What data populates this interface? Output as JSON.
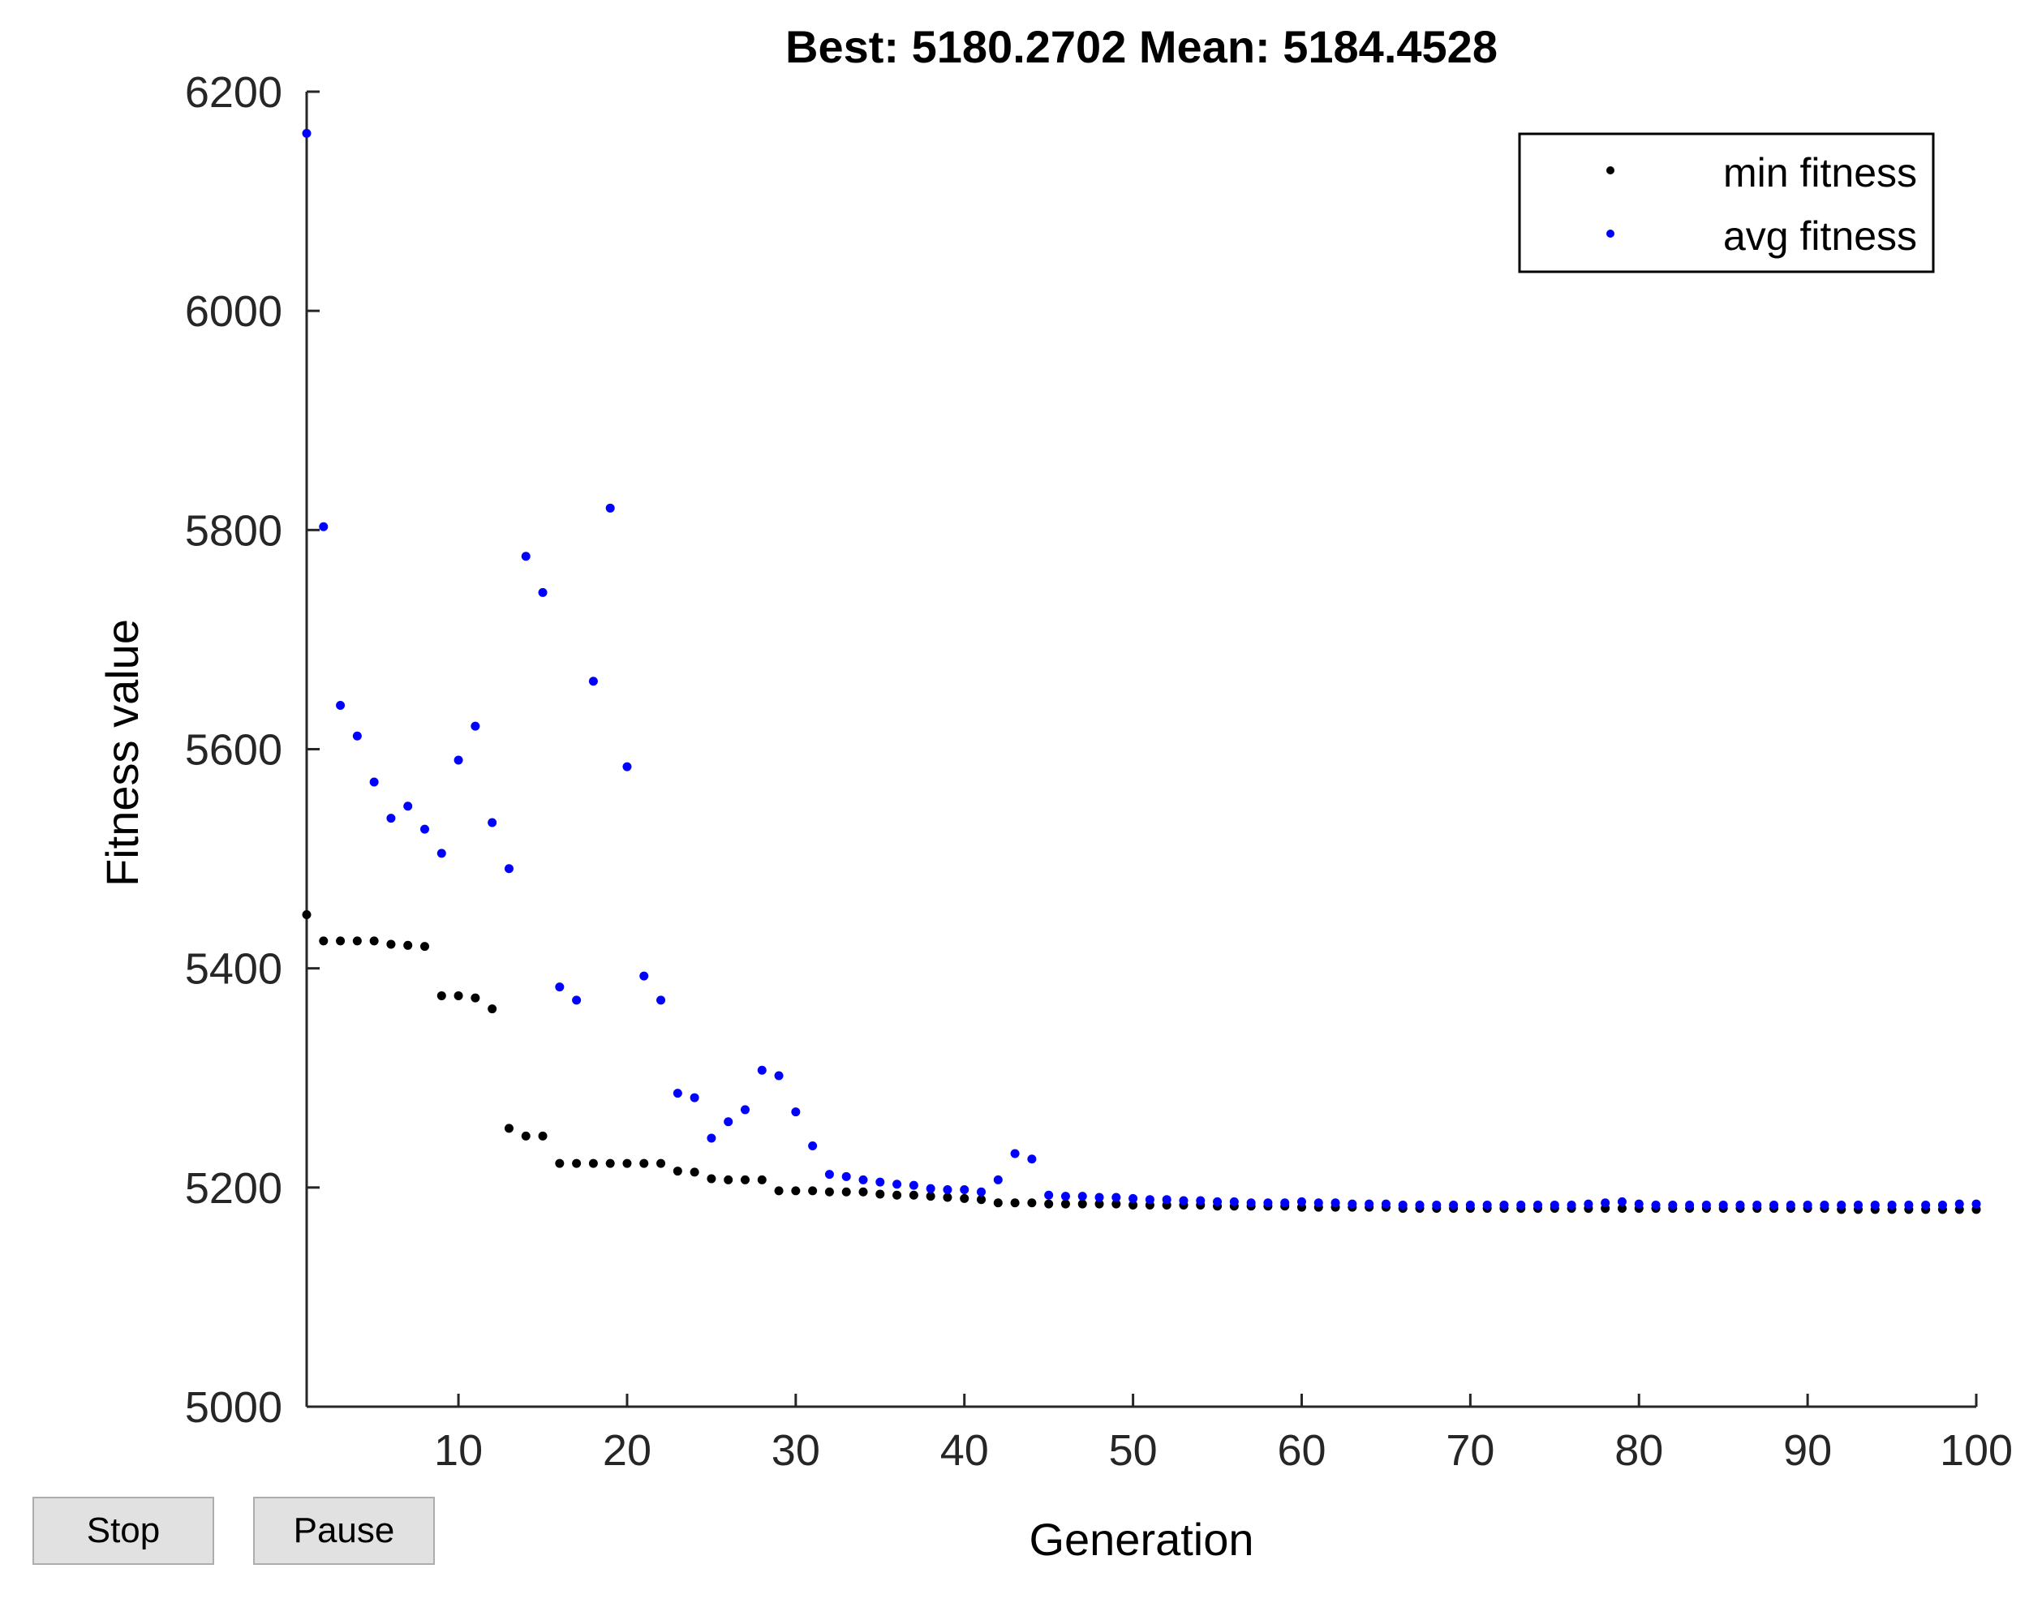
{
  "buttons": {
    "stop_label": "Stop",
    "pause_label": "Pause"
  },
  "chart_data": {
    "type": "scatter",
    "title": "Best: 5180.2702 Mean: 5184.4528",
    "xlabel": "Generation",
    "ylabel": "Fitness value",
    "xlim": [
      1,
      100
    ],
    "ylim": [
      5000,
      6200
    ],
    "xticks": [
      10,
      20,
      30,
      40,
      50,
      60,
      70,
      80,
      90,
      100
    ],
    "yticks": [
      5000,
      5200,
      5400,
      5600,
      5800,
      6000,
      6200
    ],
    "grid": false,
    "legend_position": "top-right",
    "series": [
      {
        "name": "min fitness",
        "color": "#000000",
        "x": [
          1,
          2,
          3,
          4,
          5,
          6,
          7,
          8,
          9,
          10,
          11,
          12,
          13,
          14,
          15,
          16,
          17,
          18,
          19,
          20,
          21,
          22,
          23,
          24,
          25,
          26,
          27,
          28,
          29,
          30,
          31,
          32,
          33,
          34,
          35,
          36,
          37,
          38,
          39,
          40,
          41,
          42,
          43,
          44,
          45,
          46,
          47,
          48,
          49,
          50,
          51,
          52,
          53,
          54,
          55,
          56,
          57,
          58,
          59,
          60,
          61,
          62,
          63,
          64,
          65,
          66,
          67,
          68,
          69,
          70,
          71,
          72,
          73,
          74,
          75,
          76,
          77,
          78,
          79,
          80,
          81,
          82,
          83,
          84,
          85,
          86,
          87,
          88,
          89,
          90,
          91,
          92,
          93,
          94,
          95,
          96,
          97,
          98,
          99,
          100
        ],
        "y": [
          5449,
          5425,
          5425,
          5425,
          5425,
          5422,
          5421,
          5420,
          5375,
          5375,
          5373,
          5363,
          5254,
          5247,
          5247,
          5222,
          5222,
          5222,
          5222,
          5222,
          5222,
          5222,
          5215,
          5214,
          5208,
          5207,
          5207,
          5207,
          5197,
          5197,
          5197,
          5196,
          5196,
          5196,
          5194,
          5193,
          5193,
          5192,
          5191,
          5190,
          5189,
          5186,
          5186,
          5186,
          5185,
          5185,
          5185,
          5185,
          5185,
          5184,
          5184,
          5184,
          5184,
          5184,
          5183,
          5183,
          5183,
          5183,
          5183,
          5182,
          5182,
          5182,
          5182,
          5182,
          5182,
          5181,
          5181,
          5181,
          5181,
          5181,
          5181,
          5181,
          5181,
          5181,
          5181,
          5181,
          5181,
          5181,
          5181,
          5181,
          5181,
          5181,
          5181,
          5181,
          5181,
          5181,
          5181,
          5181,
          5181,
          5181,
          5181,
          5180,
          5180,
          5180,
          5180,
          5180,
          5180,
          5180,
          5180,
          5180
        ]
      },
      {
        "name": "avg fitness",
        "color": "#0000ff",
        "x": [
          1,
          2,
          3,
          4,
          5,
          6,
          7,
          8,
          9,
          10,
          11,
          12,
          13,
          14,
          15,
          16,
          17,
          18,
          19,
          20,
          21,
          22,
          23,
          24,
          25,
          26,
          27,
          28,
          29,
          30,
          31,
          32,
          33,
          34,
          35,
          36,
          37,
          38,
          39,
          40,
          41,
          42,
          43,
          44,
          45,
          46,
          47,
          48,
          49,
          50,
          51,
          52,
          53,
          54,
          55,
          56,
          57,
          58,
          59,
          60,
          61,
          62,
          63,
          64,
          65,
          66,
          67,
          68,
          69,
          70,
          71,
          72,
          73,
          74,
          75,
          76,
          77,
          78,
          79,
          80,
          81,
          82,
          83,
          84,
          85,
          86,
          87,
          88,
          89,
          90,
          91,
          92,
          93,
          94,
          95,
          96,
          97,
          98,
          99,
          100
        ],
        "y": [
          6162,
          5803,
          5640,
          5612,
          5570,
          5537,
          5548,
          5527,
          5505,
          5590,
          5621,
          5533,
          5491,
          5776,
          5743,
          5383,
          5371,
          5662,
          5820,
          5584,
          5393,
          5371,
          5286,
          5282,
          5245,
          5260,
          5271,
          5307,
          5302,
          5269,
          5238,
          5212,
          5210,
          5207,
          5205,
          5203,
          5202,
          5199,
          5198,
          5198,
          5196,
          5207,
          5231,
          5226,
          5193,
          5192,
          5192,
          5191,
          5191,
          5190,
          5189,
          5189,
          5188,
          5188,
          5187,
          5187,
          5186,
          5186,
          5186,
          5187,
          5186,
          5186,
          5185,
          5185,
          5185,
          5184,
          5184,
          5184,
          5184,
          5184,
          5184,
          5184,
          5184,
          5184,
          5184,
          5184,
          5185,
          5186,
          5187,
          5185,
          5184,
          5184,
          5184,
          5184,
          5184,
          5184,
          5184,
          5184,
          5184,
          5184,
          5184,
          5184,
          5184,
          5184,
          5184,
          5184,
          5184,
          5184,
          5185,
          5185
        ]
      }
    ]
  }
}
